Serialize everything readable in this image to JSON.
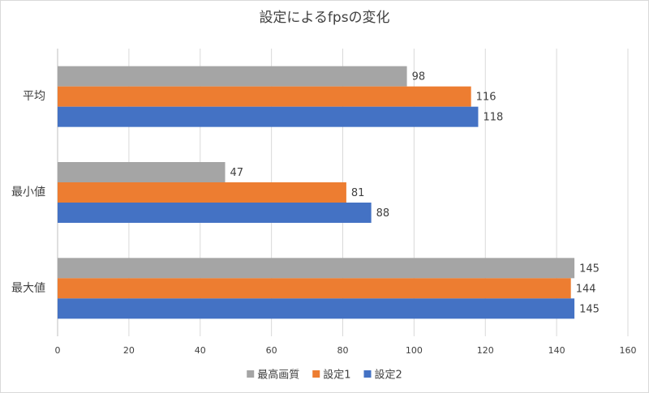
{
  "chart_data": {
    "type": "barh",
    "title": "設定によるfpsの変化",
    "categories": [
      "平均",
      "最小値",
      "最大値"
    ],
    "series": [
      {
        "name": "最高画質",
        "color": "#a5a5a5",
        "values": [
          98,
          47,
          145
        ]
      },
      {
        "name": "設定1",
        "color": "#ed7d31",
        "values": [
          116,
          81,
          144
        ]
      },
      {
        "name": "設定2",
        "color": "#4472c4",
        "values": [
          118,
          88,
          145
        ]
      }
    ],
    "xlim": [
      0,
      160
    ],
    "xticks": [
      0,
      20,
      40,
      60,
      80,
      100,
      120,
      140,
      160
    ],
    "grid": true,
    "data_labels": true,
    "legend": "bottom"
  }
}
